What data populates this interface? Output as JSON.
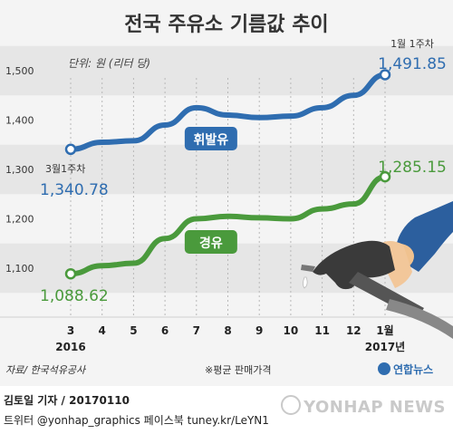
{
  "title": "전국 주유소 기름값 추이",
  "unit_label": "단위: 원 (리터 당)",
  "source": "자료/ 한국석유공사",
  "note": "※평균 판매가격",
  "logo": "연합뉴스",
  "credit": "김토일 기자 / 20170110",
  "social": "트위터 @yonhap_graphics  페이스북 tuney.kr/LeYN1",
  "watermark": "YONHAP NEWS",
  "chart_data": {
    "type": "line",
    "x": [
      "3",
      "4",
      "5",
      "6",
      "7",
      "8",
      "9",
      "10",
      "11",
      "12",
      "1월"
    ],
    "x_sublabels": {
      "first": "2016",
      "last": "2017년"
    },
    "ylim": [
      1050,
      1550
    ],
    "yticks": [
      "1,100",
      "1,200",
      "1,300",
      "1,400",
      "1,500"
    ],
    "series": [
      {
        "name": "휘발유",
        "color": "#2f6db0",
        "values": [
          1340.78,
          1355,
          1358,
          1390,
          1425,
          1410,
          1405,
          1408,
          1425,
          1450,
          1491.85
        ],
        "start_label": "3월1주차",
        "start_value_label": "1,340.78",
        "end_label": "1월 1주차",
        "end_value_label": "1,491.85"
      },
      {
        "name": "경유",
        "color": "#4a9a3c",
        "values": [
          1088.62,
          1105,
          1110,
          1160,
          1200,
          1205,
          1202,
          1200,
          1220,
          1230,
          1285.15
        ],
        "start_value_label": "1,088.62",
        "end_value_label": "1,285.15"
      }
    ],
    "grid": true
  }
}
